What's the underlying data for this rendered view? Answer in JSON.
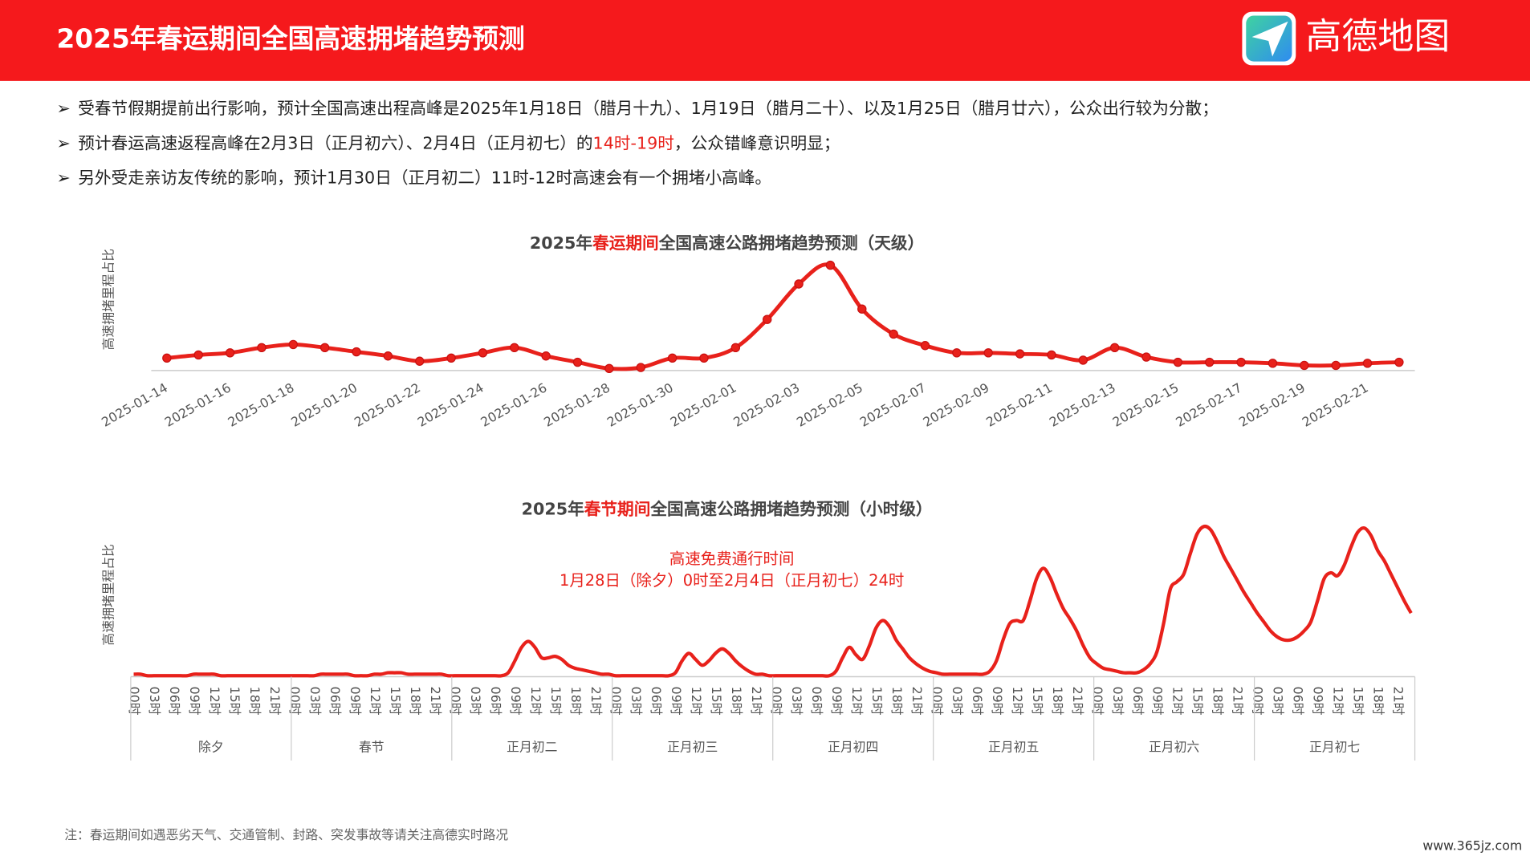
{
  "header": {
    "title": "2025年春运期间全国高速拥堵趋势预测",
    "logo_text": "高德地图"
  },
  "bullets": [
    {
      "marker": "➢",
      "segments": [
        "受春节假期提前出行影响，预计全国高速出程高峰是2025年1月18日（腊月十九）、1月19日（腊月二十）、以及1月25日（腊月廿六），公众出行较为分散；"
      ],
      "highlight": null
    },
    {
      "marker": "➢",
      "segments": [
        "预计春运高速返程高峰在2月3日（正月初六）、2月4日（正月初七）的",
        "14时-19时",
        "，公众错峰意识明显；"
      ],
      "highlight": 1
    },
    {
      "marker": "➢",
      "segments": [
        "另外受走亲访友传统的影响，预计1月30日（正月初二）11时-12时高速会有一个拥堵小高峰。"
      ],
      "highlight": null
    }
  ],
  "highlight_color": "#e8211b",
  "chart_data": [
    {
      "type": "line",
      "title_segments": [
        "2025年",
        "春运期间",
        "全国高速公路拥堵趋势预测（天级）"
      ],
      "title_highlight": 1,
      "ylabel": "高速拥堵里程占比",
      "color": "#e8211b",
      "markers": true,
      "ylim": [
        0,
        100
      ],
      "categories": [
        "2025-01-14",
        null,
        "2025-01-16",
        null,
        "2025-01-18",
        null,
        "2025-01-20",
        null,
        "2025-01-22",
        null,
        "2025-01-24",
        null,
        "2025-01-26",
        null,
        "2025-01-28",
        null,
        "2025-01-30",
        null,
        "2025-02-01",
        null,
        "2025-02-03",
        null,
        "2025-02-05",
        null,
        "2025-02-07",
        null,
        "2025-02-09",
        null,
        "2025-02-11",
        null,
        "2025-02-13",
        null,
        "2025-02-15",
        null,
        "2025-02-17",
        null,
        "2025-02-19",
        null,
        "2025-02-21",
        null
      ],
      "values": [
        11,
        14,
        16,
        21,
        24,
        21,
        17,
        13,
        8,
        11,
        16,
        21,
        13,
        7,
        1,
        2,
        11,
        11,
        21,
        48,
        82,
        100,
        58,
        34,
        23,
        16,
        16,
        15,
        14,
        9,
        21,
        12,
        7,
        7,
        7,
        6,
        4,
        4,
        6,
        7
      ]
    },
    {
      "type": "line",
      "title_segments": [
        "2025年",
        "春节期间",
        "全国高速公路拥堵趋势预测（小时级）"
      ],
      "title_highlight": 1,
      "ylabel": "高速拥堵里程占比",
      "color": "#e8211b",
      "markers": false,
      "ylim": [
        0,
        100
      ],
      "annotation": [
        "高速免费通行时间",
        "1月28日（除夕）0时至2月4日（正月初七）24时"
      ],
      "groups": [
        "除夕",
        "春节",
        "正月初二",
        "正月初三",
        "正月初四",
        "正月初五",
        "正月初六",
        "正月初七"
      ],
      "categories": [
        "00时",
        null,
        null,
        "03时",
        null,
        null,
        "06时",
        null,
        null,
        "09时",
        null,
        null,
        "12时",
        null,
        null,
        "15时",
        null,
        null,
        "18时",
        null,
        null,
        "21时",
        null,
        null,
        "00时",
        null,
        null,
        "03时",
        null,
        null,
        "06时",
        null,
        null,
        "09时",
        null,
        null,
        "12时",
        null,
        null,
        "15时",
        null,
        null,
        "18时",
        null,
        null,
        "21时",
        null,
        null,
        "00时",
        null,
        null,
        "03时",
        null,
        null,
        "06时",
        null,
        null,
        "09时",
        null,
        null,
        "12时",
        null,
        null,
        "15时",
        null,
        null,
        "18时",
        null,
        null,
        "21时",
        null,
        null,
        "00时",
        null,
        null,
        "03时",
        null,
        null,
        "06时",
        null,
        null,
        "09时",
        null,
        null,
        "12时",
        null,
        null,
        "15时",
        null,
        null,
        "18时",
        null,
        null,
        "21时",
        null,
        null,
        "00时",
        null,
        null,
        "03时",
        null,
        null,
        "06时",
        null,
        null,
        "09时",
        null,
        null,
        "12时",
        null,
        null,
        "15时",
        null,
        null,
        "18时",
        null,
        null,
        "21时",
        null,
        null,
        "00时",
        null,
        null,
        "03时",
        null,
        null,
        "06时",
        null,
        null,
        "09时",
        null,
        null,
        "12时",
        null,
        null,
        "15时",
        null,
        null,
        "18时",
        null,
        null,
        "21时",
        null,
        null,
        "00时",
        null,
        null,
        "03时",
        null,
        null,
        "06时",
        null,
        null,
        "09时",
        null,
        null,
        "12时",
        null,
        null,
        "15时",
        null,
        null,
        "18时",
        null,
        null,
        "21时",
        null,
        null,
        "00时",
        null,
        null,
        "03时",
        null,
        null,
        "06时",
        null,
        null,
        "09时",
        null,
        null,
        "12时",
        null,
        null,
        "15时",
        null,
        null,
        "18时",
        null,
        null,
        "21时",
        null,
        null
      ],
      "values": [
        1,
        1,
        0,
        0,
        0,
        0,
        0,
        0,
        0,
        1,
        1,
        1,
        1,
        0,
        0,
        0,
        0,
        0,
        0,
        0,
        0,
        0,
        0,
        0,
        0,
        0,
        0,
        0,
        1,
        1,
        1,
        1,
        1,
        0,
        0,
        0,
        1,
        1,
        2,
        2,
        2,
        1,
        1,
        1,
        1,
        1,
        1,
        0,
        0,
        0,
        0,
        0,
        0,
        0,
        0,
        0,
        2,
        10,
        19,
        23,
        19,
        12,
        12,
        13,
        11,
        7,
        5,
        4,
        3,
        2,
        1,
        1,
        0,
        0,
        0,
        0,
        0,
        0,
        0,
        0,
        0,
        2,
        10,
        15,
        11,
        7,
        10,
        15,
        18,
        15,
        10,
        6,
        3,
        1,
        1,
        0,
        0,
        0,
        0,
        0,
        0,
        0,
        0,
        0,
        0,
        3,
        12,
        19,
        14,
        11,
        20,
        32,
        37,
        33,
        24,
        18,
        12,
        8,
        5,
        3,
        2,
        1,
        1,
        1,
        1,
        1,
        1,
        1,
        3,
        10,
        24,
        35,
        37,
        37,
        50,
        65,
        72,
        66,
        55,
        45,
        38,
        30,
        20,
        12,
        8,
        5,
        4,
        3,
        2,
        2,
        2,
        4,
        8,
        16,
        35,
        58,
        63,
        68,
        82,
        95,
        100,
        98,
        90,
        80,
        72,
        64,
        56,
        49,
        42,
        36,
        30,
        26,
        24,
        24,
        26,
        30,
        36,
        50,
        65,
        69,
        67,
        74,
        86,
        96,
        99,
        94,
        84,
        77,
        68,
        59,
        50,
        42
      ]
    }
  ],
  "note": "注：春运期间如遇恶劣天气、交通管制、封路、突发事故等请关注高德实时路况",
  "watermark": "www.365jz.com"
}
